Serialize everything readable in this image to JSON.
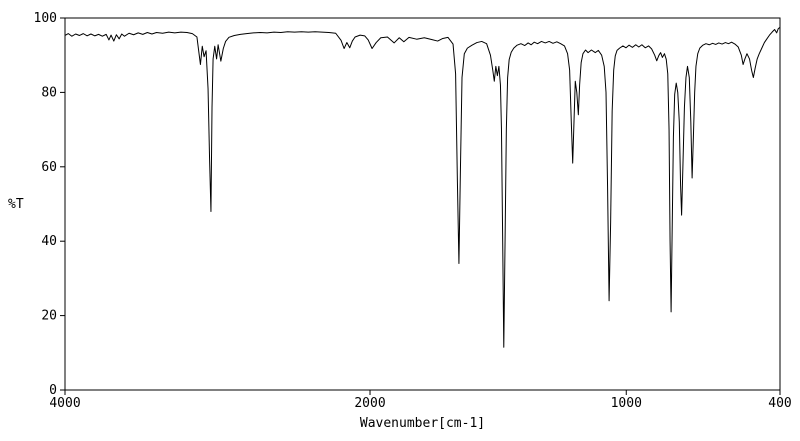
{
  "chart_data": {
    "type": "line",
    "title": "",
    "xlabel": "Wavenumber[cm-1]",
    "ylabel": "%T",
    "line_color": "#000000",
    "background": "#ffffff",
    "grid": false,
    "legend": "none",
    "x_axis": {
      "min": 4000,
      "max": 400,
      "reversed": true,
      "ticks": [
        4000,
        2000,
        1000,
        400
      ],
      "break_at": 2000,
      "break_fraction": 0.4266,
      "note": "piecewise linear: 4000-2000 compressed left segment, 2000-400 expanded right segment"
    },
    "y_axis": {
      "min": 0,
      "max": 100,
      "ticks": [
        0,
        20,
        40,
        60,
        80,
        100
      ]
    },
    "series": [
      {
        "name": "transmittance",
        "points": [
          [
            4000,
            95.3
          ],
          [
            3978,
            95.8
          ],
          [
            3955,
            95.1
          ],
          [
            3930,
            95.7
          ],
          [
            3905,
            95.3
          ],
          [
            3880,
            95.8
          ],
          [
            3855,
            95.2
          ],
          [
            3830,
            95.7
          ],
          [
            3805,
            95.2
          ],
          [
            3780,
            95.6
          ],
          [
            3755,
            95.1
          ],
          [
            3730,
            95.6
          ],
          [
            3712,
            94.1
          ],
          [
            3698,
            95.4
          ],
          [
            3680,
            93.8
          ],
          [
            3663,
            95.5
          ],
          [
            3645,
            94.4
          ],
          [
            3628,
            95.7
          ],
          [
            3610,
            95.1
          ],
          [
            3580,
            95.9
          ],
          [
            3550,
            95.5
          ],
          [
            3520,
            96.0
          ],
          [
            3490,
            95.6
          ],
          [
            3460,
            96.1
          ],
          [
            3430,
            95.7
          ],
          [
            3400,
            96.1
          ],
          [
            3360,
            95.9
          ],
          [
            3320,
            96.2
          ],
          [
            3280,
            96.0
          ],
          [
            3240,
            96.2
          ],
          [
            3200,
            96.1
          ],
          [
            3165,
            95.8
          ],
          [
            3135,
            94.9
          ],
          [
            3112,
            87.5
          ],
          [
            3100,
            92.4
          ],
          [
            3088,
            89.6
          ],
          [
            3075,
            91.2
          ],
          [
            3062,
            81.0
          ],
          [
            3052,
            62.0
          ],
          [
            3043,
            48.0
          ],
          [
            3036,
            76.0
          ],
          [
            3029,
            89.0
          ],
          [
            3018,
            92.4
          ],
          [
            3006,
            89.0
          ],
          [
            2996,
            92.8
          ],
          [
            2978,
            88.4
          ],
          [
            2962,
            91.8
          ],
          [
            2947,
            93.7
          ],
          [
            2925,
            94.8
          ],
          [
            2890,
            95.3
          ],
          [
            2850,
            95.6
          ],
          [
            2810,
            95.8
          ],
          [
            2765,
            96.0
          ],
          [
            2720,
            96.1
          ],
          [
            2675,
            96.0
          ],
          [
            2630,
            96.2
          ],
          [
            2585,
            96.1
          ],
          [
            2540,
            96.3
          ],
          [
            2495,
            96.2
          ],
          [
            2450,
            96.3
          ],
          [
            2405,
            96.2
          ],
          [
            2360,
            96.3
          ],
          [
            2315,
            96.2
          ],
          [
            2270,
            96.1
          ],
          [
            2225,
            95.9
          ],
          [
            2190,
            94.0
          ],
          [
            2170,
            91.8
          ],
          [
            2152,
            93.4
          ],
          [
            2133,
            92.0
          ],
          [
            2116,
            93.8
          ],
          [
            2098,
            94.9
          ],
          [
            2065,
            95.4
          ],
          [
            2035,
            95.2
          ],
          [
            2012,
            94.1
          ],
          [
            1992,
            91.8
          ],
          [
            1976,
            93.4
          ],
          [
            1958,
            94.7
          ],
          [
            1932,
            94.9
          ],
          [
            1906,
            93.3
          ],
          [
            1886,
            94.7
          ],
          [
            1868,
            93.6
          ],
          [
            1848,
            94.8
          ],
          [
            1818,
            94.3
          ],
          [
            1788,
            94.7
          ],
          [
            1758,
            94.2
          ],
          [
            1736,
            93.8
          ],
          [
            1716,
            94.5
          ],
          [
            1696,
            94.8
          ],
          [
            1676,
            93.0
          ],
          [
            1666,
            85.0
          ],
          [
            1659,
            56.0
          ],
          [
            1653,
            34.0
          ],
          [
            1647,
            60.0
          ],
          [
            1641,
            84.0
          ],
          [
            1632,
            90.4
          ],
          [
            1620,
            91.9
          ],
          [
            1602,
            92.7
          ],
          [
            1583,
            93.4
          ],
          [
            1564,
            93.7
          ],
          [
            1545,
            93.1
          ],
          [
            1530,
            90.0
          ],
          [
            1521,
            86.0
          ],
          [
            1515,
            83.0
          ],
          [
            1509,
            87.0
          ],
          [
            1503,
            84.5
          ],
          [
            1497,
            87.0
          ],
          [
            1491,
            82.0
          ],
          [
            1487,
            70.0
          ],
          [
            1483,
            45.0
          ],
          [
            1478,
            11.5
          ],
          [
            1473,
            40.0
          ],
          [
            1468,
            70.0
          ],
          [
            1463,
            84.0
          ],
          [
            1457,
            88.8
          ],
          [
            1449,
            90.8
          ],
          [
            1439,
            91.9
          ],
          [
            1426,
            92.7
          ],
          [
            1411,
            93.1
          ],
          [
            1396,
            92.6
          ],
          [
            1383,
            93.3
          ],
          [
            1371,
            92.8
          ],
          [
            1359,
            93.5
          ],
          [
            1346,
            93.1
          ],
          [
            1331,
            93.7
          ],
          [
            1316,
            93.3
          ],
          [
            1301,
            93.7
          ],
          [
            1286,
            93.2
          ],
          [
            1271,
            93.6
          ],
          [
            1256,
            93.1
          ],
          [
            1241,
            92.5
          ],
          [
            1229,
            90.4
          ],
          [
            1221,
            86.0
          ],
          [
            1215,
            73.0
          ],
          [
            1209,
            61.0
          ],
          [
            1204,
            72.0
          ],
          [
            1199,
            83.0
          ],
          [
            1193,
            80.0
          ],
          [
            1187,
            74.0
          ],
          [
            1182,
            82.0
          ],
          [
            1176,
            88.0
          ],
          [
            1169,
            90.4
          ],
          [
            1159,
            91.4
          ],
          [
            1149,
            90.7
          ],
          [
            1136,
            91.4
          ],
          [
            1121,
            90.7
          ],
          [
            1109,
            91.3
          ],
          [
            1096,
            90.0
          ],
          [
            1086,
            87.0
          ],
          [
            1079,
            80.0
          ],
          [
            1073,
            55.0
          ],
          [
            1067,
            24.0
          ],
          [
            1061,
            45.0
          ],
          [
            1055,
            75.0
          ],
          [
            1049,
            86.0
          ],
          [
            1043,
            89.8
          ],
          [
            1036,
            91.3
          ],
          [
            1026,
            91.9
          ],
          [
            1013,
            92.5
          ],
          [
            1001,
            92.0
          ],
          [
            989,
            92.7
          ],
          [
            976,
            92.1
          ],
          [
            963,
            92.8
          ],
          [
            951,
            92.2
          ],
          [
            939,
            92.8
          ],
          [
            926,
            92.0
          ],
          [
            913,
            92.5
          ],
          [
            901,
            91.7
          ],
          [
            889,
            90.0
          ],
          [
            881,
            88.5
          ],
          [
            873,
            89.9
          ],
          [
            866,
            90.7
          ],
          [
            859,
            89.4
          ],
          [
            851,
            90.4
          ],
          [
            844,
            88.9
          ],
          [
            838,
            85.0
          ],
          [
            833,
            70.0
          ],
          [
            829,
            40.0
          ],
          [
            825,
            21.0
          ],
          [
            821,
            42.0
          ],
          [
            816,
            68.0
          ],
          [
            811,
            79.5
          ],
          [
            805,
            82.5
          ],
          [
            799,
            80.0
          ],
          [
            793,
            72.0
          ],
          [
            788,
            55.0
          ],
          [
            784,
            47.0
          ],
          [
            779,
            60.0
          ],
          [
            773,
            76.0
          ],
          [
            767,
            84.0
          ],
          [
            761,
            87.0
          ],
          [
            754,
            84.0
          ],
          [
            748,
            72.0
          ],
          [
            743,
            57.0
          ],
          [
            738,
            68.0
          ],
          [
            733,
            80.0
          ],
          [
            728,
            87.0
          ],
          [
            721,
            90.4
          ],
          [
            713,
            91.9
          ],
          [
            701,
            92.7
          ],
          [
            689,
            93.1
          ],
          [
            676,
            92.8
          ],
          [
            663,
            93.2
          ],
          [
            651,
            92.9
          ],
          [
            639,
            93.3
          ],
          [
            626,
            93.0
          ],
          [
            613,
            93.4
          ],
          [
            601,
            93.1
          ],
          [
            589,
            93.5
          ],
          [
            576,
            93.0
          ],
          [
            563,
            92.2
          ],
          [
            551,
            90.0
          ],
          [
            544,
            87.5
          ],
          [
            537,
            89.0
          ],
          [
            529,
            90.4
          ],
          [
            519,
            89.0
          ],
          [
            511,
            86.0
          ],
          [
            504,
            84.0
          ],
          [
            497,
            86.5
          ],
          [
            489,
            89.0
          ],
          [
            481,
            90.4
          ],
          [
            471,
            91.9
          ],
          [
            461,
            93.4
          ],
          [
            451,
            94.4
          ],
          [
            441,
            95.4
          ],
          [
            431,
            96.2
          ],
          [
            421,
            96.9
          ],
          [
            413,
            96.0
          ],
          [
            407,
            97.1
          ],
          [
            400,
            97.5
          ]
        ]
      }
    ]
  }
}
